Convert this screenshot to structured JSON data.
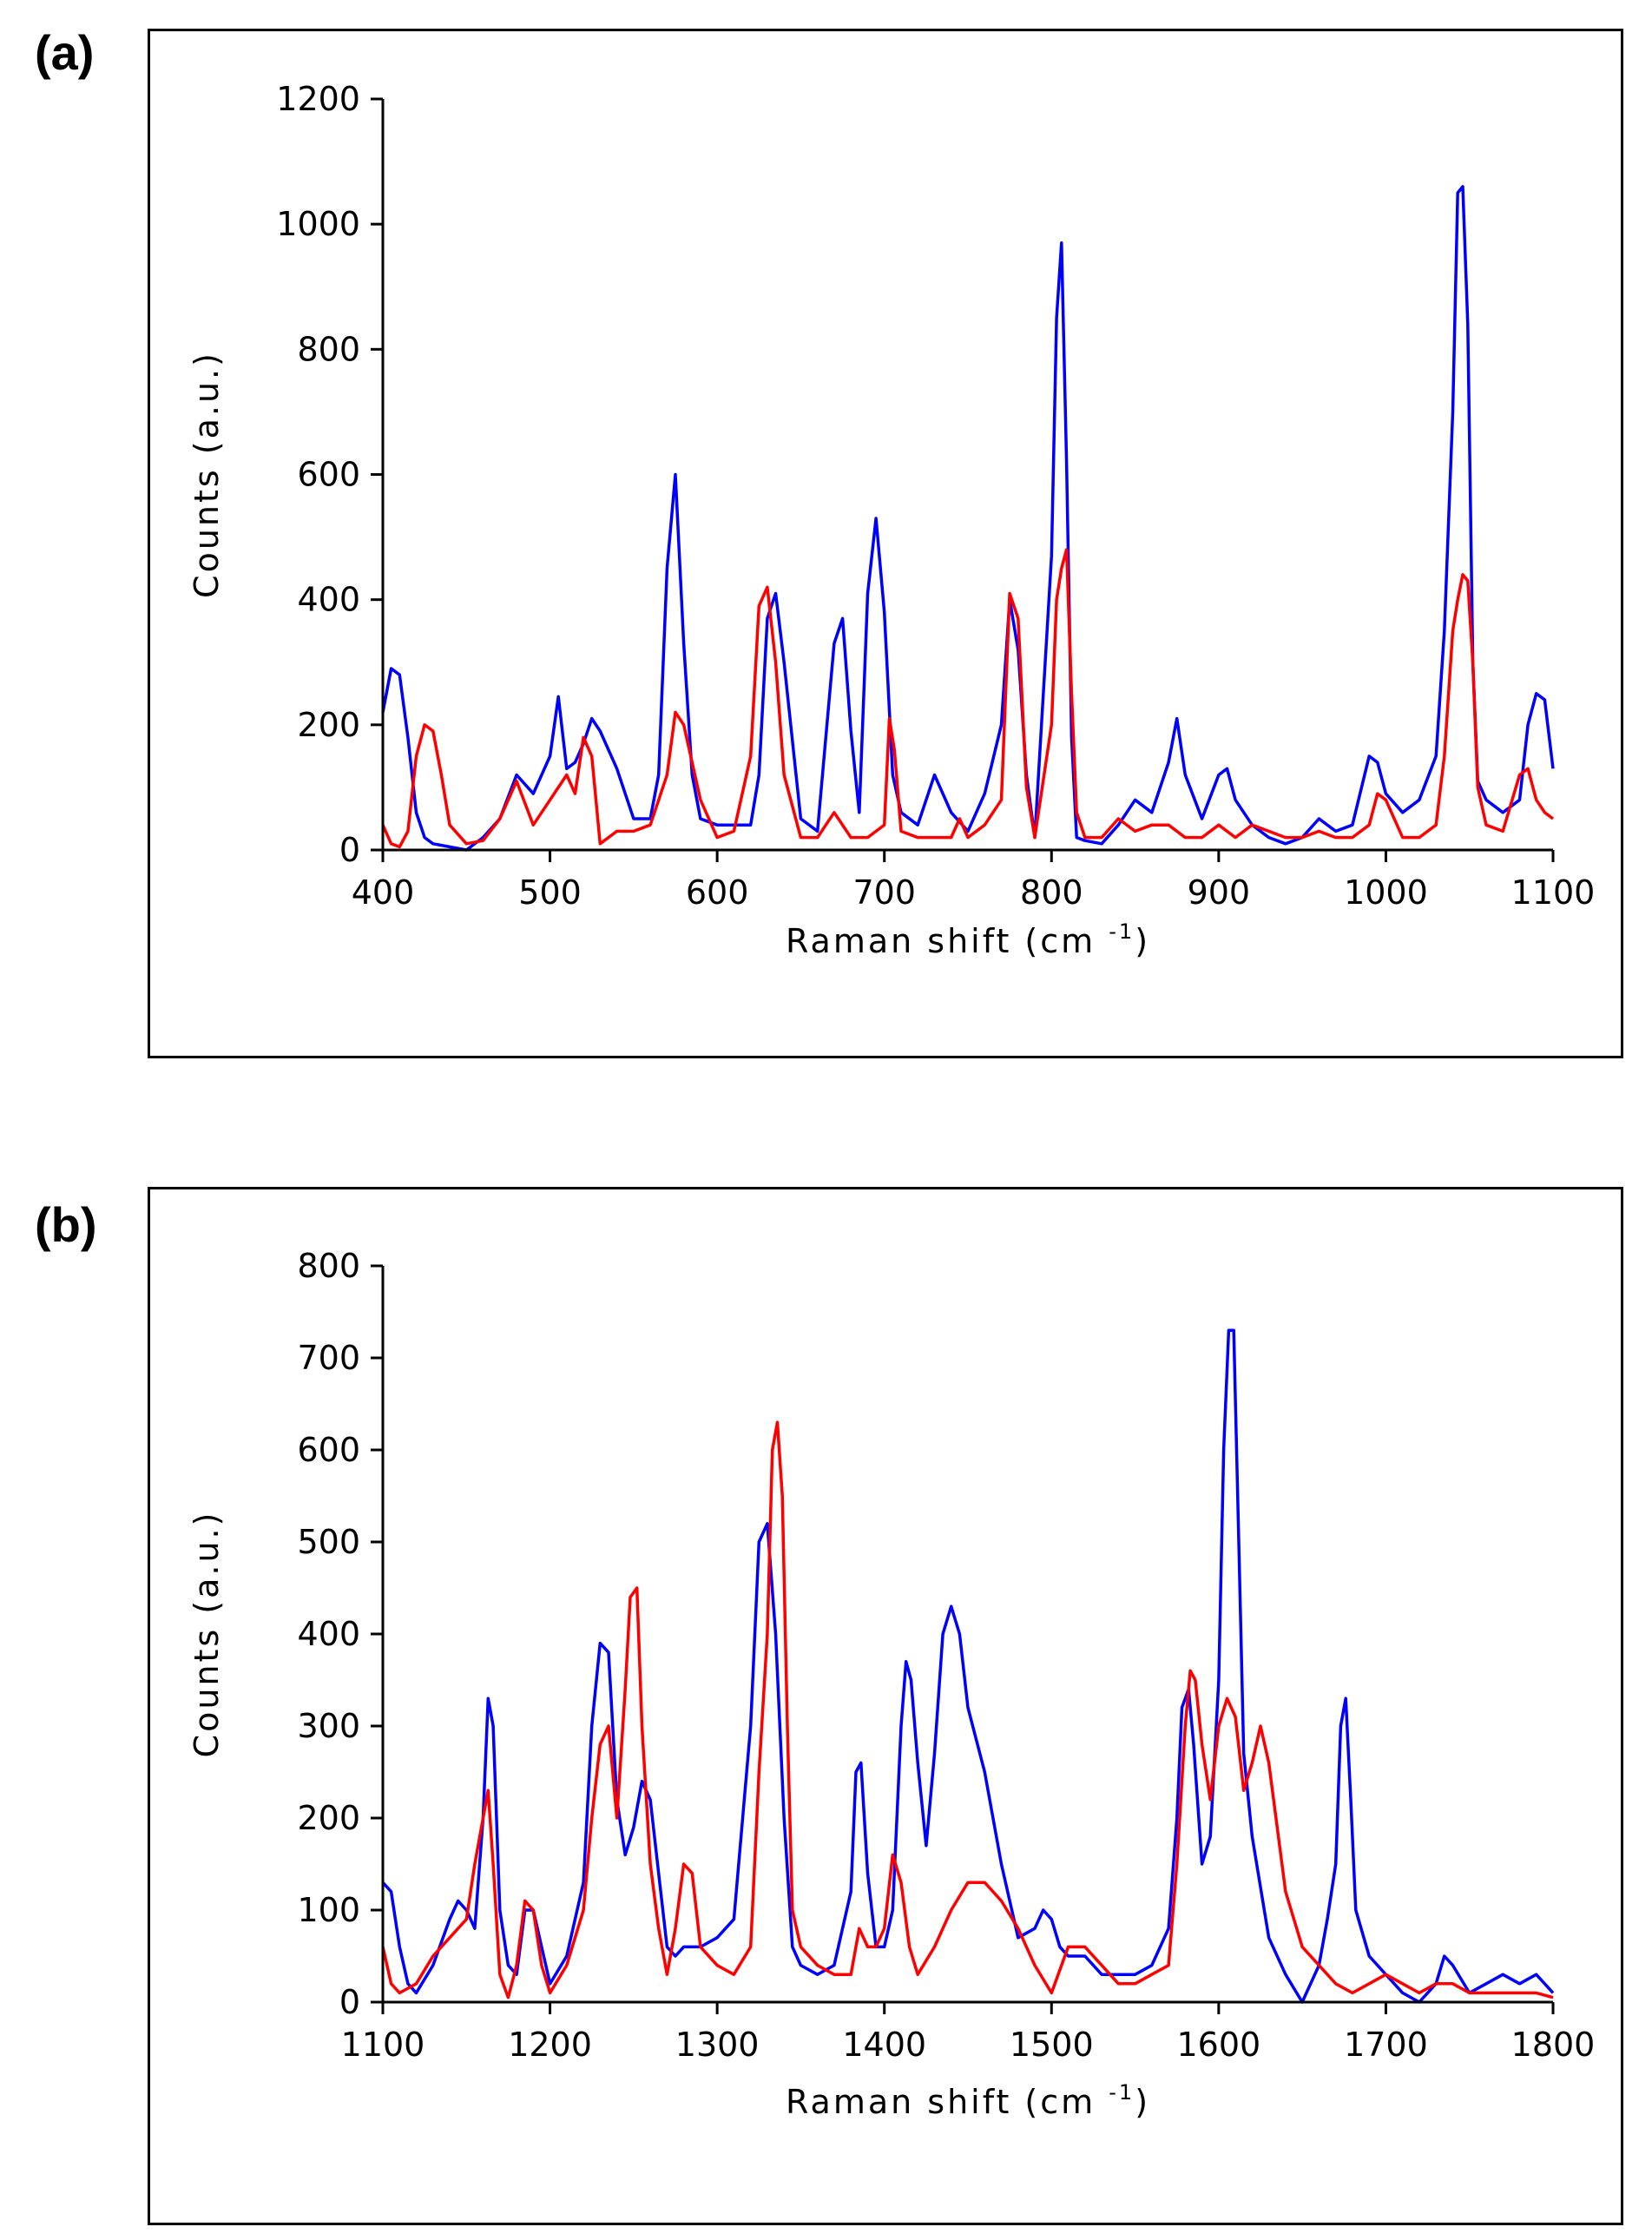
{
  "panels": {
    "a": {
      "label": "(a)"
    },
    "b": {
      "label": "(b)"
    }
  },
  "chart_data": [
    {
      "type": "line",
      "panel": "(a)",
      "xlabel": "Raman shift (cm",
      "xlabel_superscript": "-1",
      "xlabel_close": ")",
      "ylabel": "Counts (a.u.)",
      "xlim": [
        400,
        1100
      ],
      "ylim": [
        0,
        1200
      ],
      "xticks": [
        400,
        500,
        600,
        700,
        800,
        900,
        1000,
        1100
      ],
      "yticks": [
        0,
        200,
        400,
        600,
        800,
        1000,
        1200
      ],
      "series": [
        {
          "name": "blue",
          "color": "#0000ff",
          "x": [
            400,
            405,
            410,
            415,
            420,
            425,
            430,
            440,
            450,
            460,
            470,
            480,
            490,
            500,
            505,
            510,
            515,
            520,
            525,
            530,
            540,
            550,
            560,
            565,
            570,
            575,
            580,
            585,
            590,
            600,
            610,
            620,
            625,
            630,
            635,
            640,
            650,
            660,
            670,
            675,
            680,
            685,
            690,
            695,
            700,
            705,
            710,
            720,
            730,
            740,
            750,
            760,
            770,
            775,
            780,
            785,
            790,
            800,
            803,
            806,
            809,
            812,
            815,
            820,
            830,
            840,
            850,
            860,
            870,
            875,
            880,
            890,
            900,
            905,
            910,
            920,
            930,
            940,
            950,
            960,
            970,
            980,
            990,
            995,
            1000,
            1010,
            1020,
            1030,
            1035,
            1040,
            1043,
            1046,
            1049,
            1052,
            1055,
            1060,
            1070,
            1080,
            1085,
            1090,
            1095,
            1100
          ],
          "y": [
            220,
            290,
            280,
            180,
            60,
            20,
            10,
            5,
            0,
            20,
            50,
            120,
            90,
            150,
            245,
            130,
            140,
            170,
            210,
            190,
            130,
            50,
            50,
            120,
            450,
            600,
            330,
            120,
            50,
            40,
            40,
            40,
            120,
            370,
            410,
            300,
            50,
            30,
            330,
            370,
            190,
            60,
            410,
            530,
            380,
            120,
            60,
            40,
            120,
            60,
            30,
            90,
            200,
            400,
            320,
            120,
            20,
            470,
            850,
            970,
            620,
            180,
            20,
            15,
            10,
            40,
            80,
            60,
            140,
            210,
            120,
            50,
            120,
            130,
            80,
            40,
            20,
            10,
            20,
            50,
            30,
            40,
            150,
            140,
            90,
            60,
            80,
            150,
            350,
            700,
            1050,
            1060,
            840,
            300,
            110,
            80,
            60,
            80,
            200,
            250,
            240,
            130
          ]
        },
        {
          "name": "red",
          "color": "#ff0000",
          "x": [
            400,
            405,
            410,
            415,
            420,
            425,
            430,
            435,
            440,
            450,
            460,
            470,
            480,
            490,
            500,
            510,
            515,
            520,
            525,
            530,
            540,
            550,
            560,
            570,
            575,
            580,
            590,
            600,
            610,
            620,
            625,
            630,
            635,
            640,
            650,
            660,
            670,
            680,
            690,
            700,
            703,
            706,
            710,
            720,
            730,
            740,
            745,
            750,
            760,
            770,
            775,
            780,
            785,
            790,
            800,
            803,
            806,
            809,
            812,
            815,
            820,
            830,
            840,
            850,
            860,
            870,
            880,
            890,
            900,
            910,
            920,
            930,
            940,
            950,
            960,
            970,
            980,
            990,
            995,
            1000,
            1010,
            1020,
            1030,
            1035,
            1040,
            1043,
            1046,
            1049,
            1052,
            1055,
            1060,
            1070,
            1080,
            1085,
            1090,
            1095,
            1100
          ],
          "y": [
            40,
            10,
            5,
            30,
            150,
            200,
            190,
            120,
            40,
            10,
            15,
            50,
            110,
            40,
            80,
            120,
            90,
            180,
            150,
            10,
            30,
            30,
            40,
            120,
            220,
            200,
            80,
            20,
            30,
            150,
            390,
            420,
            300,
            120,
            20,
            20,
            60,
            20,
            20,
            40,
            210,
            160,
            30,
            20,
            20,
            20,
            50,
            20,
            40,
            80,
            410,
            370,
            100,
            20,
            200,
            400,
            450,
            480,
            250,
            60,
            20,
            20,
            50,
            30,
            40,
            40,
            20,
            20,
            40,
            20,
            40,
            30,
            20,
            20,
            30,
            20,
            20,
            40,
            90,
            80,
            20,
            20,
            40,
            150,
            350,
            400,
            440,
            430,
            300,
            100,
            40,
            30,
            120,
            130,
            80,
            60,
            50
          ]
        }
      ]
    },
    {
      "type": "line",
      "panel": "(b)",
      "xlabel": "Raman shift (cm",
      "xlabel_superscript": "-1",
      "xlabel_close": ")",
      "ylabel": "Counts (a.u.)",
      "xlim": [
        1100,
        1800
      ],
      "ylim": [
        0,
        800
      ],
      "xticks": [
        1100,
        1200,
        1300,
        1400,
        1500,
        1600,
        1700,
        1800
      ],
      "yticks": [
        0,
        100,
        200,
        300,
        400,
        500,
        600,
        700,
        800
      ],
      "series": [
        {
          "name": "blue",
          "color": "#0000ff",
          "x": [
            1100,
            1105,
            1110,
            1115,
            1120,
            1130,
            1140,
            1145,
            1150,
            1155,
            1160,
            1163,
            1166,
            1170,
            1175,
            1180,
            1185,
            1190,
            1195,
            1200,
            1210,
            1220,
            1225,
            1230,
            1235,
            1240,
            1245,
            1250,
            1255,
            1260,
            1265,
            1270,
            1275,
            1280,
            1290,
            1300,
            1310,
            1320,
            1325,
            1330,
            1335,
            1340,
            1345,
            1350,
            1360,
            1370,
            1380,
            1383,
            1386,
            1390,
            1395,
            1400,
            1405,
            1410,
            1413,
            1416,
            1420,
            1425,
            1430,
            1435,
            1440,
            1445,
            1450,
            1460,
            1470,
            1480,
            1490,
            1495,
            1500,
            1505,
            1510,
            1520,
            1530,
            1540,
            1550,
            1560,
            1570,
            1575,
            1578,
            1582,
            1585,
            1590,
            1595,
            1600,
            1603,
            1606,
            1609,
            1612,
            1615,
            1620,
            1630,
            1640,
            1650,
            1660,
            1665,
            1670,
            1673,
            1676,
            1679,
            1682,
            1690,
            1700,
            1710,
            1720,
            1730,
            1735,
            1740,
            1750,
            1760,
            1770,
            1780,
            1790,
            1800
          ],
          "y": [
            130,
            120,
            60,
            20,
            10,
            40,
            90,
            110,
            100,
            80,
            200,
            330,
            300,
            100,
            40,
            30,
            100,
            100,
            60,
            20,
            50,
            130,
            300,
            390,
            380,
            220,
            160,
            190,
            240,
            220,
            140,
            60,
            50,
            60,
            60,
            70,
            90,
            300,
            500,
            520,
            400,
            200,
            60,
            40,
            30,
            40,
            120,
            250,
            260,
            140,
            60,
            60,
            100,
            300,
            370,
            350,
            260,
            170,
            270,
            400,
            430,
            400,
            320,
            250,
            150,
            70,
            80,
            100,
            90,
            60,
            50,
            50,
            30,
            30,
            30,
            40,
            80,
            200,
            320,
            340,
            280,
            150,
            180,
            350,
            600,
            730,
            730,
            500,
            270,
            180,
            70,
            30,
            0,
            40,
            90,
            150,
            300,
            330,
            220,
            100,
            50,
            30,
            10,
            0,
            20,
            50,
            40,
            10,
            20,
            30,
            20,
            30,
            10
          ]
        },
        {
          "name": "red",
          "color": "#ff0000",
          "x": [
            1100,
            1105,
            1110,
            1115,
            1120,
            1130,
            1140,
            1150,
            1155,
            1160,
            1163,
            1166,
            1170,
            1175,
            1180,
            1185,
            1190,
            1195,
            1200,
            1210,
            1220,
            1225,
            1230,
            1235,
            1240,
            1245,
            1248,
            1252,
            1255,
            1260,
            1265,
            1270,
            1275,
            1280,
            1285,
            1290,
            1300,
            1310,
            1320,
            1325,
            1330,
            1333,
            1336,
            1339,
            1342,
            1345,
            1350,
            1360,
            1370,
            1380,
            1385,
            1390,
            1395,
            1400,
            1405,
            1410,
            1415,
            1420,
            1430,
            1440,
            1450,
            1460,
            1470,
            1480,
            1490,
            1500,
            1510,
            1520,
            1530,
            1540,
            1550,
            1560,
            1570,
            1575,
            1580,
            1583,
            1586,
            1590,
            1595,
            1600,
            1605,
            1610,
            1615,
            1620,
            1625,
            1630,
            1640,
            1650,
            1660,
            1670,
            1680,
            1690,
            1700,
            1710,
            1720,
            1730,
            1740,
            1750,
            1760,
            1770,
            1780,
            1790,
            1800
          ],
          "y": [
            60,
            20,
            10,
            15,
            20,
            50,
            70,
            90,
            150,
            200,
            230,
            150,
            30,
            5,
            40,
            110,
            100,
            40,
            10,
            40,
            100,
            200,
            280,
            300,
            200,
            340,
            440,
            450,
            300,
            150,
            80,
            30,
            80,
            150,
            140,
            60,
            40,
            30,
            60,
            250,
            400,
            600,
            630,
            550,
            300,
            100,
            60,
            40,
            30,
            30,
            80,
            60,
            60,
            80,
            160,
            130,
            60,
            30,
            60,
            100,
            130,
            130,
            110,
            80,
            40,
            10,
            60,
            60,
            40,
            20,
            20,
            30,
            40,
            150,
            300,
            360,
            350,
            280,
            220,
            300,
            330,
            310,
            230,
            260,
            300,
            260,
            120,
            60,
            40,
            20,
            10,
            20,
            30,
            20,
            10,
            20,
            20,
            10,
            10,
            10,
            10,
            10,
            5
          ]
        }
      ]
    }
  ]
}
